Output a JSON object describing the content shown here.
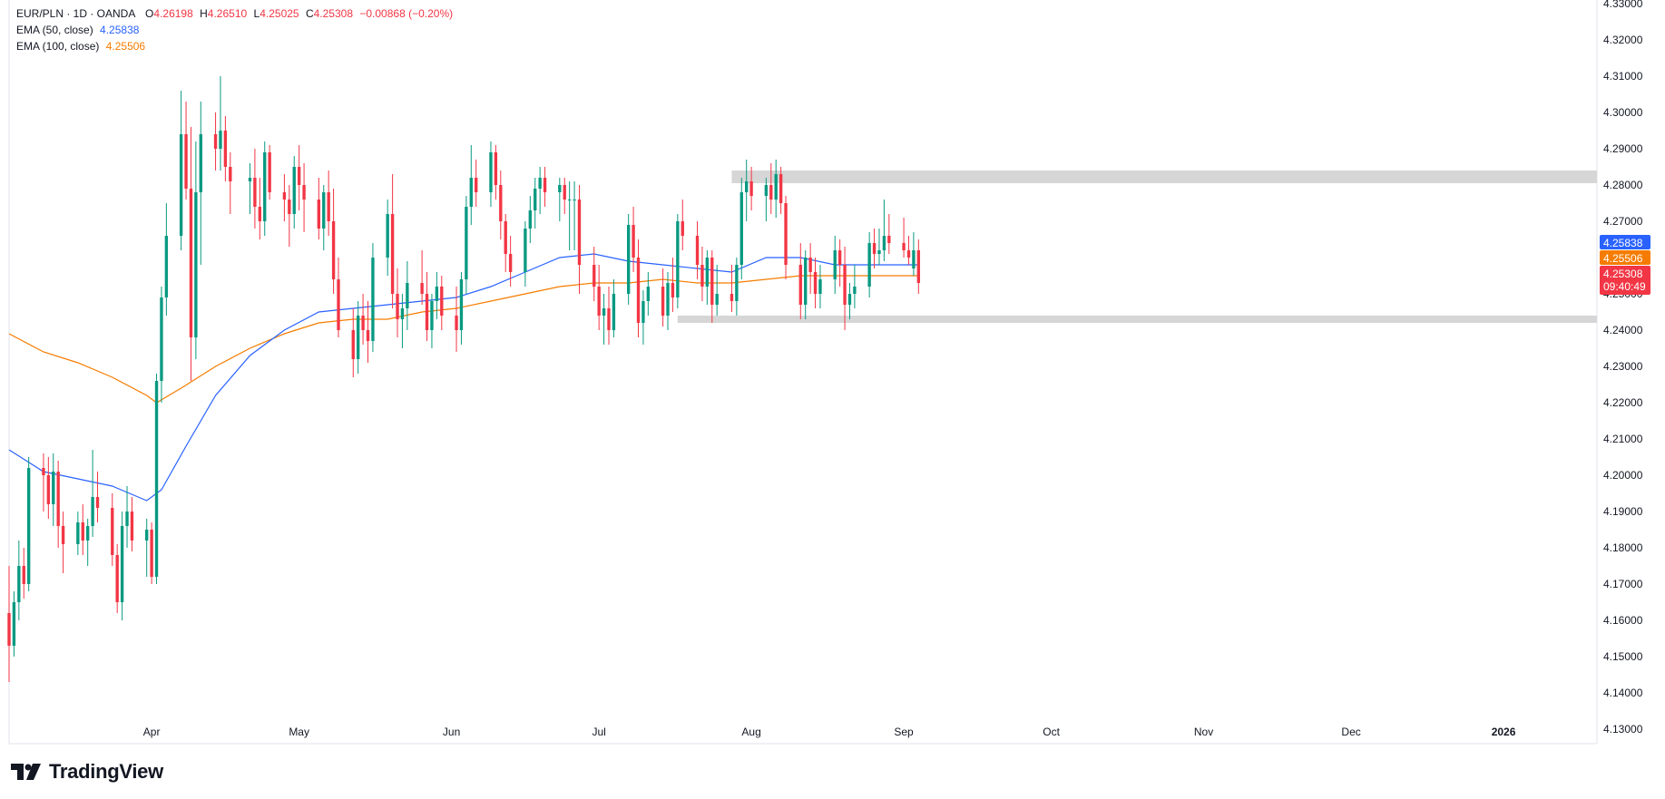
{
  "header": {
    "symbol": "EUR/PLN · 1D · OANDA",
    "open_label": "O",
    "open_value": "4.26198",
    "high_label": "H",
    "high_value": "4.26510",
    "low_label": "L",
    "low_value": "4.25025",
    "close_label": "C",
    "close_value": "4.25308",
    "change": "−0.00868 (−0.20%)",
    "ema50_label": "EMA (50, close)",
    "ema50_value": "4.25838",
    "ema100_label": "EMA (100, close)",
    "ema100_value": "4.25506"
  },
  "colors": {
    "up": "#089981",
    "down": "#f23645",
    "ema50": "#2962ff",
    "ema100": "#f57c00",
    "zone": "#d6d6d6",
    "text": "#131722"
  },
  "price_badges": {
    "ema50": "4.25838",
    "ema100": "4.25506",
    "close": "4.25308",
    "countdown": "09:40:49"
  },
  "branding": {
    "name": "TradingView",
    "icon": "tradingview-logo-icon"
  },
  "chart_data": {
    "type": "candlestick",
    "x_axis": {
      "tick_labels": [
        "Apr",
        "May",
        "Jun",
        "Jul",
        "Aug",
        "Sep",
        "Oct",
        "Nov",
        "Dec",
        "2026"
      ],
      "range": [
        "2025-03-03",
        "2026-01-20"
      ]
    },
    "y_axis": {
      "ticks": [
        "4.13000",
        "4.14000",
        "4.15000",
        "4.16000",
        "4.17000",
        "4.18000",
        "4.19000",
        "4.20000",
        "4.21000",
        "4.22000",
        "4.23000",
        "4.24000",
        "4.25000",
        "4.26000",
        "4.27000",
        "4.28000",
        "4.29000",
        "4.30000",
        "4.31000",
        "4.32000",
        "4.33000"
      ],
      "range": [
        4.126,
        4.331
      ],
      "side": "right"
    },
    "zones": [
      {
        "name": "resistance",
        "from_date": "2025-07-28",
        "to_date": "2026-01-20",
        "low": 4.2805,
        "high": 4.284
      },
      {
        "name": "support",
        "from_date": "2025-07-17",
        "to_date": "2026-01-20",
        "low": 4.242,
        "high": 4.244
      }
    ],
    "candles": [
      [
        "2025-03-03",
        4.162,
        4.175,
        4.143,
        4.153
      ],
      [
        "2025-03-04",
        4.153,
        4.168,
        4.15,
        4.165
      ],
      [
        "2025-03-05",
        4.165,
        4.182,
        4.16,
        4.175
      ],
      [
        "2025-03-06",
        4.175,
        4.18,
        4.166,
        4.17
      ],
      [
        "2025-03-07",
        4.17,
        4.205,
        4.168,
        4.202
      ],
      [
        "2025-03-10",
        4.202,
        4.206,
        4.19,
        4.2
      ],
      [
        "2025-03-11",
        4.2,
        4.205,
        4.188,
        4.192
      ],
      [
        "2025-03-12",
        4.192,
        4.206,
        4.186,
        4.201
      ],
      [
        "2025-03-13",
        4.201,
        4.204,
        4.18,
        4.186
      ],
      [
        "2025-03-14",
        4.186,
        4.19,
        4.173,
        4.181
      ],
      [
        "2025-03-17",
        4.181,
        4.19,
        4.178,
        4.187
      ],
      [
        "2025-03-18",
        4.187,
        4.192,
        4.178,
        4.182
      ],
      [
        "2025-03-19",
        4.182,
        4.188,
        4.175,
        4.186
      ],
      [
        "2025-03-20",
        4.186,
        4.207,
        4.183,
        4.194
      ],
      [
        "2025-03-21",
        4.194,
        4.201,
        4.187,
        4.191
      ],
      [
        "2025-03-24",
        4.191,
        4.195,
        4.175,
        4.178
      ],
      [
        "2025-03-25",
        4.178,
        4.181,
        4.162,
        4.165
      ],
      [
        "2025-03-26",
        4.165,
        4.19,
        4.16,
        4.186
      ],
      [
        "2025-03-27",
        4.186,
        4.197,
        4.18,
        4.19
      ],
      [
        "2025-03-28",
        4.19,
        4.194,
        4.179,
        4.182
      ],
      [
        "2025-03-31",
        4.182,
        4.188,
        4.172,
        4.185
      ],
      [
        "2025-04-01",
        4.185,
        4.187,
        4.17,
        4.172
      ],
      [
        "2025-04-02",
        4.172,
        4.228,
        4.17,
        4.226
      ],
      [
        "2025-04-03",
        4.226,
        4.252,
        4.22,
        4.249
      ],
      [
        "2025-04-04",
        4.249,
        4.275,
        4.244,
        4.266
      ],
      [
        "2025-04-07",
        4.266,
        4.306,
        4.262,
        4.294
      ],
      [
        "2025-04-08",
        4.294,
        4.303,
        4.276,
        4.279
      ],
      [
        "2025-04-09",
        4.279,
        4.296,
        4.226,
        4.238
      ],
      [
        "2025-04-10",
        4.238,
        4.292,
        4.232,
        4.278
      ],
      [
        "2025-04-11",
        4.278,
        4.303,
        4.258,
        4.294
      ],
      [
        "2025-04-14",
        4.294,
        4.3,
        4.284,
        4.29
      ],
      [
        "2025-04-15",
        4.29,
        4.31,
        4.284,
        4.295
      ],
      [
        "2025-04-16",
        4.295,
        4.299,
        4.281,
        4.285
      ],
      [
        "2025-04-17",
        4.285,
        4.289,
        4.272,
        4.281
      ],
      [
        "2025-04-21",
        4.281,
        4.286,
        4.272,
        4.282
      ],
      [
        "2025-04-22",
        4.282,
        4.29,
        4.268,
        4.274
      ],
      [
        "2025-04-23",
        4.274,
        4.282,
        4.265,
        4.27
      ],
      [
        "2025-04-24",
        4.27,
        4.292,
        4.266,
        4.289
      ],
      [
        "2025-04-25",
        4.289,
        4.291,
        4.276,
        4.278
      ],
      [
        "2025-04-28",
        4.278,
        4.283,
        4.27,
        4.276
      ],
      [
        "2025-04-29",
        4.276,
        4.28,
        4.263,
        4.272
      ],
      [
        "2025-04-30",
        4.272,
        4.288,
        4.268,
        4.285
      ],
      [
        "2025-05-01",
        4.285,
        4.291,
        4.273,
        4.28
      ],
      [
        "2025-05-02",
        4.28,
        4.286,
        4.267,
        4.276
      ],
      [
        "2025-05-05",
        4.276,
        4.282,
        4.265,
        4.268
      ],
      [
        "2025-05-06",
        4.268,
        4.28,
        4.262,
        4.278
      ],
      [
        "2025-05-07",
        4.278,
        4.284,
        4.266,
        4.27
      ],
      [
        "2025-05-08",
        4.27,
        4.279,
        4.25,
        4.254
      ],
      [
        "2025-05-09",
        4.254,
        4.26,
        4.238,
        4.24
      ],
      [
        "2025-05-12",
        4.24,
        4.246,
        4.227,
        4.232
      ],
      [
        "2025-05-13",
        4.232,
        4.248,
        4.228,
        4.244
      ],
      [
        "2025-05-14",
        4.244,
        4.25,
        4.236,
        4.24
      ],
      [
        "2025-05-15",
        4.24,
        4.248,
        4.231,
        4.237
      ],
      [
        "2025-05-16",
        4.237,
        4.264,
        4.234,
        4.26
      ],
      [
        "2025-05-19",
        4.26,
        4.276,
        4.255,
        4.272
      ],
      [
        "2025-05-20",
        4.272,
        4.283,
        4.246,
        4.25
      ],
      [
        "2025-05-21",
        4.25,
        4.257,
        4.238,
        4.243
      ],
      [
        "2025-05-22",
        4.243,
        4.25,
        4.235,
        4.246
      ],
      [
        "2025-05-23",
        4.246,
        4.259,
        4.24,
        4.253
      ],
      [
        "2025-05-26",
        4.253,
        4.262,
        4.247,
        4.25
      ],
      [
        "2025-05-27",
        4.25,
        4.256,
        4.237,
        4.24
      ],
      [
        "2025-05-28",
        4.24,
        4.25,
        4.235,
        4.248
      ],
      [
        "2025-05-29",
        4.248,
        4.256,
        4.243,
        4.252
      ],
      [
        "2025-05-30",
        4.252,
        4.255,
        4.24,
        4.244
      ],
      [
        "2025-06-02",
        4.244,
        4.252,
        4.234,
        4.24
      ],
      [
        "2025-06-03",
        4.24,
        4.256,
        4.236,
        4.254
      ],
      [
        "2025-06-04",
        4.254,
        4.277,
        4.25,
        4.274
      ],
      [
        "2025-06-05",
        4.274,
        4.291,
        4.269,
        4.282
      ],
      [
        "2025-06-06",
        4.282,
        4.287,
        4.274,
        4.278
      ],
      [
        "2025-06-09",
        4.278,
        4.292,
        4.274,
        4.289
      ],
      [
        "2025-06-10",
        4.289,
        4.291,
        4.276,
        4.28
      ],
      [
        "2025-06-11",
        4.28,
        4.284,
        4.265,
        4.27
      ],
      [
        "2025-06-12",
        4.27,
        4.272,
        4.256,
        4.261
      ],
      [
        "2025-06-13",
        4.261,
        4.266,
        4.252,
        4.256
      ],
      [
        "2025-06-16",
        4.256,
        4.27,
        4.252,
        4.268
      ],
      [
        "2025-06-17",
        4.268,
        4.277,
        4.264,
        4.273
      ],
      [
        "2025-06-18",
        4.273,
        4.282,
        4.268,
        4.279
      ],
      [
        "2025-06-19",
        4.279,
        4.285,
        4.272,
        4.282
      ],
      [
        "2025-06-20",
        4.282,
        4.285,
        4.274,
        4.278
      ],
      [
        "2025-06-23",
        4.278,
        4.282,
        4.27,
        4.28
      ],
      [
        "2025-06-24",
        4.28,
        4.282,
        4.272,
        4.276
      ],
      [
        "2025-06-25",
        4.276,
        4.281,
        4.262,
        4.276
      ],
      [
        "2025-06-26",
        4.276,
        4.281,
        4.262,
        4.276
      ],
      [
        "2025-06-27",
        4.276,
        4.28,
        4.25,
        4.258
      ],
      [
        "2025-06-30",
        4.258,
        4.263,
        4.248,
        4.252
      ],
      [
        "2025-07-01",
        4.252,
        4.258,
        4.24,
        4.244
      ],
      [
        "2025-07-02",
        4.244,
        4.25,
        4.236,
        4.246
      ],
      [
        "2025-07-03",
        4.246,
        4.252,
        4.236,
        4.24
      ],
      [
        "2025-07-04",
        4.24,
        4.254,
        4.238,
        4.25
      ],
      [
        "2025-07-07",
        4.25,
        4.272,
        4.247,
        4.269
      ],
      [
        "2025-07-08",
        4.269,
        4.274,
        4.256,
        4.26
      ],
      [
        "2025-07-09",
        4.26,
        4.265,
        4.238,
        4.242
      ],
      [
        "2025-07-10",
        4.242,
        4.251,
        4.236,
        4.248
      ],
      [
        "2025-07-11",
        4.248,
        4.256,
        4.244,
        4.252
      ],
      [
        "2025-07-14",
        4.252,
        4.257,
        4.241,
        4.244
      ],
      [
        "2025-07-15",
        4.244,
        4.256,
        4.24,
        4.253
      ],
      [
        "2025-07-16",
        4.253,
        4.26,
        4.245,
        4.249
      ],
      [
        "2025-07-17",
        4.249,
        4.272,
        4.246,
        4.27
      ],
      [
        "2025-07-18",
        4.27,
        4.276,
        4.262,
        4.266
      ],
      [
        "2025-07-21",
        4.266,
        4.27,
        4.254,
        4.258
      ],
      [
        "2025-07-22",
        4.258,
        4.263,
        4.248,
        4.252
      ],
      [
        "2025-07-23",
        4.252,
        4.262,
        4.247,
        4.26
      ],
      [
        "2025-07-24",
        4.26,
        4.262,
        4.242,
        4.247
      ],
      [
        "2025-07-25",
        4.247,
        4.258,
        4.244,
        4.25
      ],
      [
        "2025-07-28",
        4.25,
        4.258,
        4.245,
        4.248
      ],
      [
        "2025-07-29",
        4.248,
        4.26,
        4.244,
        4.258
      ],
      [
        "2025-07-30",
        4.258,
        4.282,
        4.254,
        4.278
      ],
      [
        "2025-07-31",
        4.278,
        4.287,
        4.27,
        4.281
      ],
      [
        "2025-08-01",
        4.281,
        4.285,
        4.273,
        4.277
      ],
      [
        "2025-08-04",
        4.277,
        4.282,
        4.27,
        4.28
      ],
      [
        "2025-08-05",
        4.28,
        4.286,
        4.272,
        4.276
      ],
      [
        "2025-08-06",
        4.276,
        4.287,
        4.271,
        4.283
      ],
      [
        "2025-08-07",
        4.283,
        4.285,
        4.272,
        4.275
      ],
      [
        "2025-08-08",
        4.275,
        4.277,
        4.254,
        4.258
      ],
      [
        "2025-08-11",
        4.258,
        4.264,
        4.243,
        4.247
      ],
      [
        "2025-08-12",
        4.247,
        4.262,
        4.243,
        4.26
      ],
      [
        "2025-08-13",
        4.26,
        4.264,
        4.25,
        4.256
      ],
      [
        "2025-08-14",
        4.256,
        4.26,
        4.246,
        4.25
      ],
      [
        "2025-08-15",
        4.25,
        4.258,
        4.246,
        4.254
      ],
      [
        "2025-08-18",
        4.254,
        4.266,
        4.25,
        4.262
      ],
      [
        "2025-08-19",
        4.262,
        4.265,
        4.252,
        4.258
      ],
      [
        "2025-08-20",
        4.258,
        4.263,
        4.24,
        4.247
      ],
      [
        "2025-08-21",
        4.247,
        4.253,
        4.243,
        4.25
      ],
      [
        "2025-08-22",
        4.25,
        4.258,
        4.246,
        4.252
      ],
      [
        "2025-08-25",
        4.252,
        4.267,
        4.249,
        4.264
      ],
      [
        "2025-08-26",
        4.264,
        4.268,
        4.257,
        4.261
      ],
      [
        "2025-08-27",
        4.261,
        4.268,
        4.258,
        4.262
      ],
      [
        "2025-08-28",
        4.262,
        4.276,
        4.259,
        4.266
      ],
      [
        "2025-08-29",
        4.266,
        4.272,
        4.261,
        4.264
      ],
      [
        "2025-09-01",
        4.264,
        4.271,
        4.26,
        4.262
      ],
      [
        "2025-09-02",
        4.262,
        4.266,
        4.258,
        4.26
      ],
      [
        "2025-09-03",
        4.257,
        4.267,
        4.255,
        4.262
      ],
      [
        "2025-09-04",
        4.262,
        4.265,
        4.25,
        4.253
      ]
    ],
    "series": [
      {
        "name": "EMA (50, close)",
        "points": [
          [
            "2025-03-03",
            4.207
          ],
          [
            "2025-03-10",
            4.201
          ],
          [
            "2025-03-17",
            4.199
          ],
          [
            "2025-03-24",
            4.197
          ],
          [
            "2025-03-31",
            4.193
          ],
          [
            "2025-04-03",
            4.196
          ],
          [
            "2025-04-08",
            4.208
          ],
          [
            "2025-04-14",
            4.222
          ],
          [
            "2025-04-21",
            4.233
          ],
          [
            "2025-04-28",
            4.24
          ],
          [
            "2025-05-05",
            4.245
          ],
          [
            "2025-05-12",
            4.246
          ],
          [
            "2025-05-19",
            4.247
          ],
          [
            "2025-05-26",
            4.248
          ],
          [
            "2025-06-02",
            4.249
          ],
          [
            "2025-06-09",
            4.252
          ],
          [
            "2025-06-16",
            4.256
          ],
          [
            "2025-06-23",
            4.26
          ],
          [
            "2025-06-30",
            4.261
          ],
          [
            "2025-07-07",
            4.259
          ],
          [
            "2025-07-14",
            4.258
          ],
          [
            "2025-07-21",
            4.257
          ],
          [
            "2025-07-28",
            4.256
          ],
          [
            "2025-08-04",
            4.26
          ],
          [
            "2025-08-11",
            4.26
          ],
          [
            "2025-08-18",
            4.258
          ],
          [
            "2025-08-25",
            4.258
          ],
          [
            "2025-09-04",
            4.258
          ]
        ]
      },
      {
        "name": "EMA (100, close)",
        "points": [
          [
            "2025-03-03",
            4.239
          ],
          [
            "2025-03-10",
            4.234
          ],
          [
            "2025-03-17",
            4.231
          ],
          [
            "2025-03-24",
            4.227
          ],
          [
            "2025-03-31",
            4.222
          ],
          [
            "2025-04-02",
            4.22
          ],
          [
            "2025-04-07",
            4.224
          ],
          [
            "2025-04-14",
            4.23
          ],
          [
            "2025-04-21",
            4.235
          ],
          [
            "2025-04-28",
            4.239
          ],
          [
            "2025-05-05",
            4.242
          ],
          [
            "2025-05-12",
            4.243
          ],
          [
            "2025-05-19",
            4.243
          ],
          [
            "2025-05-26",
            4.245
          ],
          [
            "2025-06-02",
            4.246
          ],
          [
            "2025-06-09",
            4.248
          ],
          [
            "2025-06-16",
            4.25
          ],
          [
            "2025-06-23",
            4.252
          ],
          [
            "2025-06-30",
            4.253
          ],
          [
            "2025-07-07",
            4.253
          ],
          [
            "2025-07-14",
            4.254
          ],
          [
            "2025-07-21",
            4.253
          ],
          [
            "2025-07-28",
            4.253
          ],
          [
            "2025-08-04",
            4.254
          ],
          [
            "2025-08-11",
            4.255
          ],
          [
            "2025-08-18",
            4.255
          ],
          [
            "2025-08-25",
            4.255
          ],
          [
            "2025-09-04",
            4.255
          ]
        ]
      }
    ]
  }
}
